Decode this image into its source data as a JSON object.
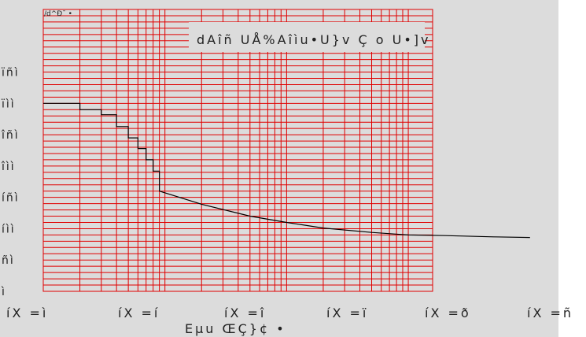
{
  "chart_data": {
    "type": "line",
    "title": "dAîñ UÅ%Aîìu•U}v      Ç  o  U•]v",
    "ylabel_mark": "/d^Ð¯   •",
    "xlabel": "Eµu   ŒÇ}¢  •",
    "x_scale": "log",
    "xlim": [
      1,
      100000
    ],
    "ylim": [
      0,
      450
    ],
    "y_ticks": [
      {
        "value": 0,
        "label": "ì"
      },
      {
        "value": 50,
        "label": "ñì"
      },
      {
        "value": 100,
        "label": "íìì"
      },
      {
        "value": 150,
        "label": "íñì"
      },
      {
        "value": 200,
        "label": "îìì"
      },
      {
        "value": 250,
        "label": "îñì"
      },
      {
        "value": 300,
        "label": "ïìì"
      },
      {
        "value": 350,
        "label": "ïñì"
      }
    ],
    "x_ticks": [
      {
        "value": 1,
        "label": "íX =ì"
      },
      {
        "value": 10,
        "label": "íX =í"
      },
      {
        "value": 100,
        "label": "íX =î"
      },
      {
        "value": 1000,
        "label": "íX =ï"
      },
      {
        "value": 10000,
        "label": "íX =ð"
      },
      {
        "value": 100000,
        "label": "íX =ñ"
      }
    ],
    "grid": true,
    "grid_color": "#e00000",
    "line_color": "#000000",
    "series": [
      {
        "x": [
          1,
          2,
          2,
          3,
          3,
          4,
          4,
          5,
          5,
          6,
          6,
          7,
          7,
          8,
          8,
          9,
          9,
          20,
          50,
          100,
          200,
          500,
          1000,
          2000,
          5000,
          10000
        ],
        "y": [
          300,
          300,
          290,
          290,
          282,
          282,
          263,
          263,
          245,
          245,
          228,
          228,
          210,
          210,
          192,
          192,
          160,
          139,
          120,
          110,
          101,
          94,
          90,
          89,
          87,
          86
        ]
      }
    ]
  }
}
